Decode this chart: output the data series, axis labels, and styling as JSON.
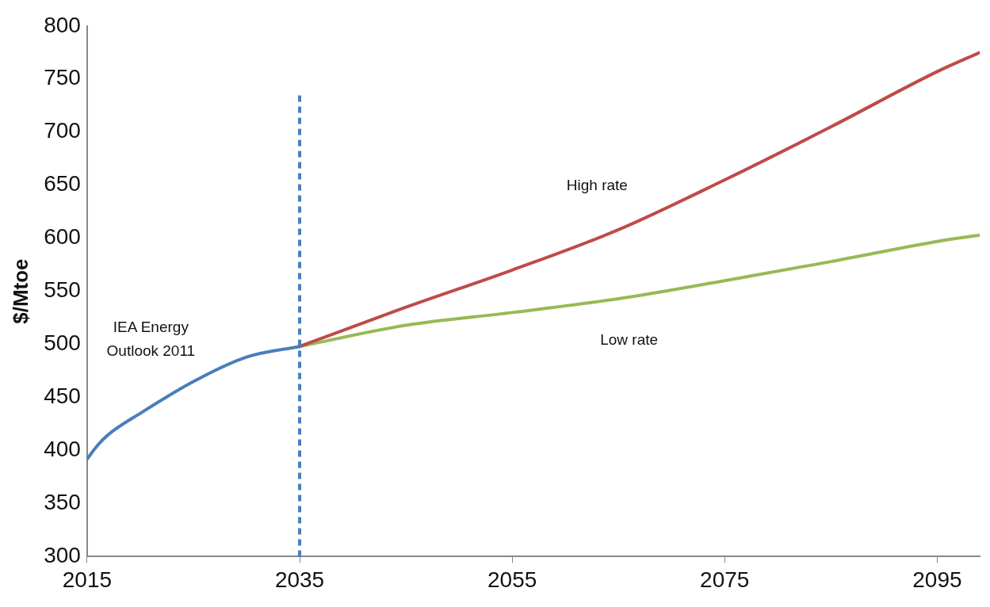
{
  "chart_data": {
    "type": "line",
    "ylabel": "$/Mtoe",
    "xlim": [
      2015,
      2099
    ],
    "xticks": [
      2015,
      2035,
      2055,
      2075,
      2095
    ],
    "ylim": [
      300,
      800
    ],
    "yticks": [
      300,
      350,
      400,
      450,
      500,
      550,
      600,
      650,
      700,
      750,
      800
    ],
    "grid": false,
    "legend": false,
    "marker": "none",
    "line_style": "solid",
    "series": [
      {
        "name": "IEA Energy Outlook 2011",
        "color": "#4a7ebb",
        "x": [
          2015,
          2016,
          2017,
          2020,
          2025,
          2030,
          2035
        ],
        "values": [
          392,
          405,
          415,
          435,
          465,
          488,
          498
        ]
      },
      {
        "name": "High rate",
        "color": "#be4b48",
        "x": [
          2035,
          2045,
          2055,
          2065,
          2075,
          2085,
          2095,
          2099
        ],
        "values": [
          498,
          535,
          570,
          608,
          655,
          705,
          757,
          775
        ]
      },
      {
        "name": "Low rate",
        "color": "#98b954",
        "x": [
          2035,
          2045,
          2055,
          2065,
          2075,
          2085,
          2095,
          2099
        ],
        "values": [
          498,
          518,
          530,
          543,
          560,
          578,
          597,
          603
        ]
      }
    ],
    "ref_lines": [
      {
        "axis": "x",
        "value": 2035,
        "color": "#4a7ebb",
        "line_style": "dashed"
      }
    ]
  }
}
